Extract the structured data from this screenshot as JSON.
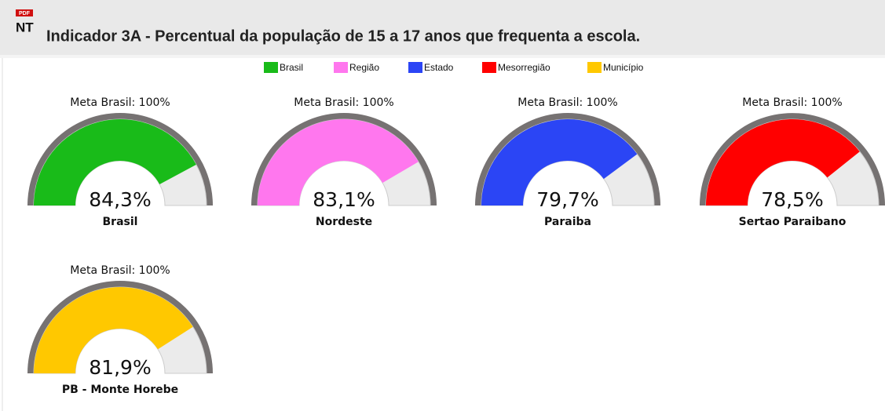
{
  "header": {
    "badge": "PDF",
    "icon": "NT",
    "title": "Indicador 3A - Percentual da população de 15 a 17 anos que frequenta a escola."
  },
  "legend": [
    {
      "name": "Brasil",
      "color": "#19bb19"
    },
    {
      "name": "Região",
      "color": "#ff77ee"
    },
    {
      "name": "Estado",
      "color": "#2b45f5"
    },
    {
      "name": "Mesorregião",
      "color": "#ff0000"
    },
    {
      "name": "Município",
      "color": "#ffc800"
    }
  ],
  "chart_data": [
    {
      "type": "gauge",
      "title": "Meta Brasil: 100%",
      "label": "Brasil",
      "values": [
        84.3
      ],
      "value_labels": [
        "84,3%"
      ],
      "color": "#19bb19",
      "ylim": [
        0,
        100
      ]
    },
    {
      "type": "gauge",
      "title": "Meta Brasil: 100%",
      "label": "Nordeste",
      "values": [
        83.1
      ],
      "value_labels": [
        "83,1%"
      ],
      "color": "#ff77ee",
      "ylim": [
        0,
        100
      ]
    },
    {
      "type": "gauge",
      "title": "Meta Brasil: 100%",
      "label": "Paraiba",
      "values": [
        79.7
      ],
      "value_labels": [
        "79,7%"
      ],
      "color": "#2b45f5",
      "ylim": [
        0,
        100
      ]
    },
    {
      "type": "gauge",
      "title": "Meta Brasil: 100%",
      "label": "Sertao Paraibano",
      "values": [
        78.5
      ],
      "value_labels": [
        "78,5%"
      ],
      "color": "#ff0000",
      "ylim": [
        0,
        100
      ]
    },
    {
      "type": "gauge",
      "title": "Meta Brasil: 100%",
      "label": "PB - Monte Horebe",
      "values": [
        81.9
      ],
      "value_labels": [
        "81,9%"
      ],
      "color": "#ffc800",
      "ylim": [
        0,
        100
      ]
    }
  ]
}
